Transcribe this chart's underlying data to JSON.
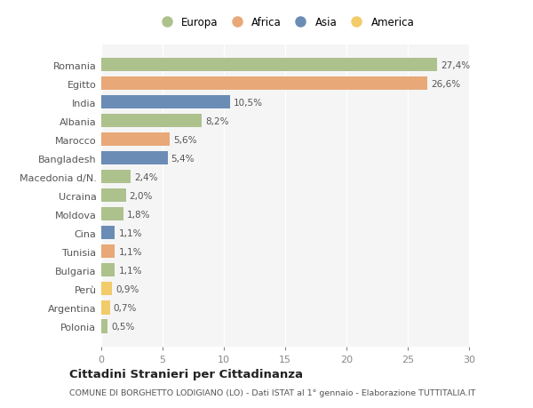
{
  "countries": [
    "Romania",
    "Egitto",
    "India",
    "Albania",
    "Marocco",
    "Bangladesh",
    "Macedonia d/N.",
    "Ucraina",
    "Moldova",
    "Cina",
    "Tunisia",
    "Bulgaria",
    "Perù",
    "Argentina",
    "Polonia"
  ],
  "values": [
    27.4,
    26.6,
    10.5,
    8.2,
    5.6,
    5.4,
    2.4,
    2.0,
    1.8,
    1.1,
    1.1,
    1.1,
    0.9,
    0.7,
    0.5
  ],
  "labels": [
    "27,4%",
    "26,6%",
    "10,5%",
    "8,2%",
    "5,6%",
    "5,4%",
    "2,4%",
    "2,0%",
    "1,8%",
    "1,1%",
    "1,1%",
    "1,1%",
    "0,9%",
    "0,7%",
    "0,5%"
  ],
  "continents": [
    "Europa",
    "Africa",
    "Asia",
    "Europa",
    "Africa",
    "Asia",
    "Europa",
    "Europa",
    "Europa",
    "Asia",
    "Africa",
    "Europa",
    "America",
    "America",
    "Europa"
  ],
  "colors": {
    "Europa": "#adc18d",
    "Africa": "#e8a878",
    "Asia": "#6b8db5",
    "America": "#f2cb6a"
  },
  "legend_order": [
    "Europa",
    "Africa",
    "Asia",
    "America"
  ],
  "title": "Cittadini Stranieri per Cittadinanza",
  "subtitle": "COMUNE DI BORGHETTO LODIGIANO (LO) - Dati ISTAT al 1° gennaio - Elaborazione TUTTITALIA.IT",
  "xlim": [
    0,
    30
  ],
  "xticks": [
    0,
    5,
    10,
    15,
    20,
    25,
    30
  ],
  "background_color": "#ffffff",
  "plot_bg_color": "#f5f5f5",
  "grid_color": "#ffffff"
}
